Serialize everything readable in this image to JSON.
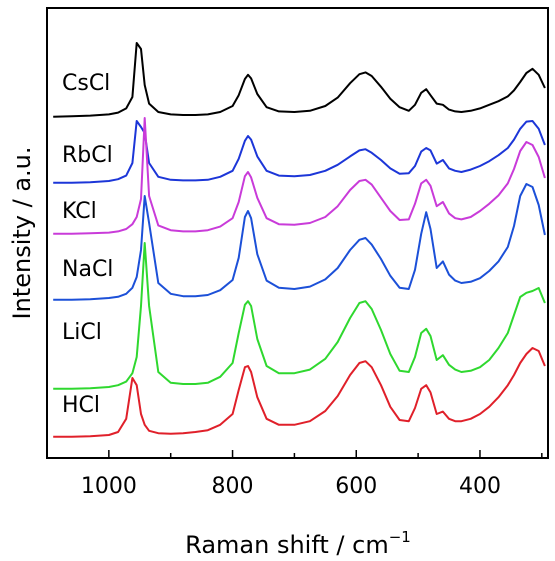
{
  "chart_data": {
    "type": "line",
    "xlabel": "Raman shift / cm",
    "xlabel_superscript": "−1",
    "ylabel": "Intensity / a.u.",
    "xlim": [
      1100,
      290
    ],
    "x_reversed": true,
    "x_ticks": [
      1000,
      800,
      600,
      400
    ],
    "y_ticks": [],
    "grid": false,
    "legend": "inline-left",
    "stacked_offset": true,
    "x": [
      1090,
      1060,
      1030,
      1000,
      985,
      972,
      962,
      955,
      948,
      942,
      935,
      920,
      900,
      880,
      860,
      840,
      820,
      800,
      790,
      780,
      775,
      770,
      760,
      745,
      725,
      700,
      675,
      650,
      630,
      610,
      595,
      585,
      575,
      560,
      545,
      530,
      515,
      505,
      495,
      487,
      480,
      470,
      460,
      450,
      440,
      430,
      415,
      400,
      385,
      370,
      355,
      345,
      335,
      325,
      315,
      305,
      295
    ],
    "series": [
      {
        "name": "CsCl",
        "color": "#000000",
        "values": [
          0.02,
          0.03,
          0.04,
          0.06,
          0.09,
          0.16,
          0.35,
          1.25,
          1.15,
          0.55,
          0.24,
          0.1,
          0.06,
          0.05,
          0.05,
          0.06,
          0.1,
          0.2,
          0.38,
          0.65,
          0.72,
          0.66,
          0.4,
          0.18,
          0.11,
          0.1,
          0.12,
          0.2,
          0.34,
          0.58,
          0.73,
          0.76,
          0.7,
          0.52,
          0.32,
          0.18,
          0.12,
          0.22,
          0.42,
          0.48,
          0.38,
          0.24,
          0.22,
          0.14,
          0.11,
          0.1,
          0.12,
          0.16,
          0.22,
          0.28,
          0.36,
          0.46,
          0.6,
          0.75,
          0.82,
          0.72,
          0.5
        ]
      },
      {
        "name": "RbCl",
        "color": "#1c36d8",
        "values": [
          0.02,
          0.02,
          0.03,
          0.05,
          0.08,
          0.14,
          0.35,
          1.05,
          0.95,
          0.85,
          0.35,
          0.12,
          0.07,
          0.06,
          0.06,
          0.07,
          0.12,
          0.22,
          0.42,
          0.72,
          0.8,
          0.74,
          0.46,
          0.22,
          0.14,
          0.13,
          0.15,
          0.22,
          0.32,
          0.46,
          0.56,
          0.58,
          0.52,
          0.4,
          0.26,
          0.17,
          0.18,
          0.3,
          0.54,
          0.6,
          0.56,
          0.34,
          0.4,
          0.26,
          0.22,
          0.2,
          0.24,
          0.3,
          0.38,
          0.48,
          0.6,
          0.74,
          0.92,
          1.04,
          1.05,
          0.92,
          0.65
        ]
      },
      {
        "name": "KCl",
        "color": "#c93bd9",
        "values": [
          0.02,
          0.02,
          0.03,
          0.04,
          0.06,
          0.1,
          0.18,
          0.3,
          0.6,
          1.95,
          0.65,
          0.16,
          0.08,
          0.06,
          0.06,
          0.08,
          0.14,
          0.28,
          0.55,
          0.98,
          1.05,
          0.96,
          0.62,
          0.28,
          0.18,
          0.17,
          0.2,
          0.3,
          0.48,
          0.75,
          0.9,
          0.92,
          0.84,
          0.62,
          0.4,
          0.25,
          0.26,
          0.52,
          0.86,
          0.92,
          0.82,
          0.48,
          0.55,
          0.36,
          0.28,
          0.26,
          0.3,
          0.4,
          0.52,
          0.66,
          0.86,
          1.1,
          1.4,
          1.55,
          1.5,
          1.3,
          0.95
        ]
      },
      {
        "name": "NaCl",
        "color": "#1c50d8",
        "values": [
          0.02,
          0.02,
          0.03,
          0.05,
          0.07,
          0.12,
          0.22,
          0.4,
          0.85,
          1.75,
          1.3,
          0.3,
          0.12,
          0.08,
          0.08,
          0.1,
          0.18,
          0.35,
          0.72,
          1.4,
          1.5,
          1.38,
          0.78,
          0.34,
          0.22,
          0.2,
          0.24,
          0.36,
          0.55,
          0.85,
          1.02,
          1.05,
          0.94,
          0.7,
          0.42,
          0.22,
          0.2,
          0.52,
          1.12,
          1.48,
          1.2,
          0.55,
          0.66,
          0.44,
          0.34,
          0.3,
          0.32,
          0.38,
          0.5,
          0.66,
          0.9,
          1.25,
          1.75,
          1.95,
          1.9,
          1.6,
          1.1
        ]
      },
      {
        "name": "LiCl",
        "color": "#2fd82f",
        "values": [
          0.02,
          0.02,
          0.03,
          0.05,
          0.08,
          0.14,
          0.28,
          0.55,
          1.4,
          2.45,
          1.4,
          0.3,
          0.12,
          0.1,
          0.1,
          0.12,
          0.22,
          0.45,
          0.95,
          1.42,
          1.48,
          1.4,
          0.85,
          0.4,
          0.28,
          0.28,
          0.34,
          0.52,
          0.8,
          1.2,
          1.45,
          1.48,
          1.35,
          1.0,
          0.6,
          0.32,
          0.3,
          0.55,
          0.95,
          1.02,
          0.9,
          0.5,
          0.58,
          0.42,
          0.34,
          0.3,
          0.32,
          0.38,
          0.5,
          0.7,
          0.95,
          1.25,
          1.55,
          1.62,
          1.65,
          1.7,
          1.45
        ]
      },
      {
        "name": "HCl",
        "color": "#e0202a",
        "values": [
          0.02,
          0.02,
          0.03,
          0.05,
          0.1,
          0.32,
          1.0,
          0.88,
          0.4,
          0.22,
          0.12,
          0.08,
          0.07,
          0.08,
          0.1,
          0.13,
          0.22,
          0.4,
          0.8,
          1.18,
          1.2,
          1.1,
          0.68,
          0.32,
          0.22,
          0.22,
          0.28,
          0.45,
          0.7,
          1.05,
          1.25,
          1.28,
          1.18,
          0.88,
          0.52,
          0.3,
          0.28,
          0.5,
          0.82,
          0.88,
          0.76,
          0.4,
          0.44,
          0.32,
          0.28,
          0.28,
          0.32,
          0.4,
          0.52,
          0.68,
          0.88,
          1.05,
          1.25,
          1.4,
          1.5,
          1.45,
          1.2
        ]
      }
    ]
  }
}
